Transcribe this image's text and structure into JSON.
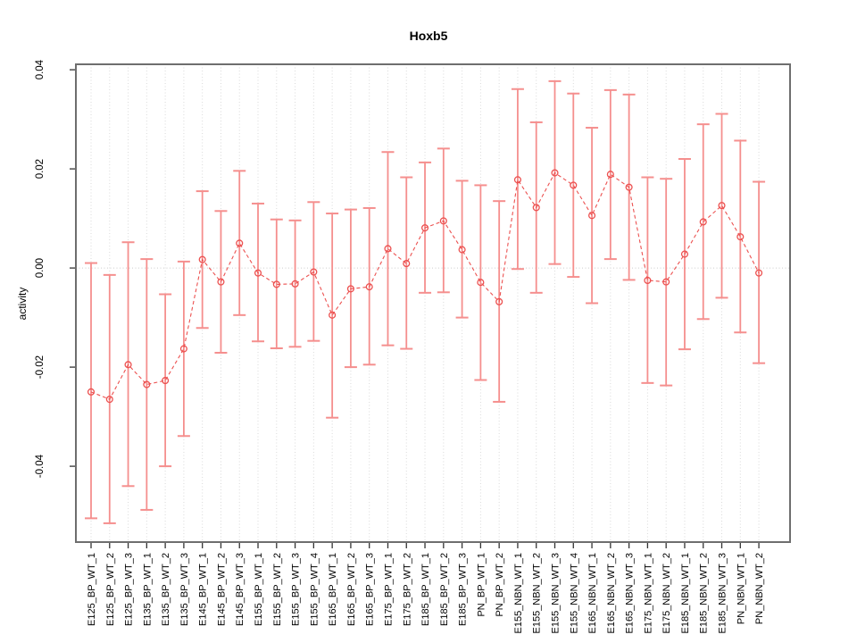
{
  "window": {
    "background": "#ffffff"
  },
  "chart_data": {
    "type": "scatter",
    "title": "Hoxb5",
    "xlabel": "",
    "ylabel": "activity",
    "legend": "none",
    "marker": "open-circle",
    "line_style": "dashed",
    "grid": {
      "vertical_dotted": true,
      "horizontal": false,
      "zero_line_dotted": true
    },
    "ylim": [
      -0.0553,
      0.0411
    ],
    "y_ticks": {
      "values": [
        0.04,
        0.02,
        0.0,
        -0.02,
        -0.04
      ],
      "labels": [
        "0.04",
        "0.02",
        "0.00",
        "-0.02",
        "-0.04"
      ]
    },
    "categories": [
      "E125_BP_WT_1",
      "E125_BP_WT_2",
      "E125_BP_WT_3",
      "E135_BP_WT_1",
      "E135_BP_WT_2",
      "E135_BP_WT_3",
      "E145_BP_WT_1",
      "E145_BP_WT_2",
      "E145_BP_WT_3",
      "E155_BP_WT_1",
      "E155_BP_WT_2",
      "E155_BP_WT_3",
      "E155_BP_WT_4",
      "E165_BP_WT_1",
      "E165_BP_WT_2",
      "E165_BP_WT_3",
      "E175_BP_WT_1",
      "E175_BP_WT_2",
      "E185_BP_WT_1",
      "E185_BP_WT_2",
      "E185_BP_WT_3",
      "PN_BP_WT_1",
      "PN_BP_WT_2",
      "E155_NBN_WT_1",
      "E155_NBN_WT_2",
      "E155_NBN_WT_3",
      "E155_NBN_WT_4",
      "E165_NBN_WT_1",
      "E165_NBN_WT_2",
      "E165_NBN_WT_3",
      "E175_NBN_WT_1",
      "E175_NBN_WT_2",
      "E185_NBN_WT_1",
      "E185_NBN_WT_2",
      "E185_NBN_WT_3",
      "PN_NBN_WT_1",
      "PN_NBN_WT_2"
    ],
    "series": [
      {
        "name": "activity",
        "values": [
          -0.025,
          -0.0265,
          -0.0195,
          -0.0235,
          -0.0227,
          -0.0163,
          0.0017,
          -0.0028,
          0.005,
          -0.001,
          -0.0033,
          -0.0032,
          -0.0008,
          -0.0095,
          -0.0042,
          -0.0038,
          0.0039,
          0.0009,
          0.0081,
          0.0095,
          0.0037,
          -0.0029,
          -0.0068,
          0.0178,
          0.0122,
          0.0192,
          0.0167,
          0.0106,
          0.0189,
          0.0163,
          -0.0025,
          -0.0028,
          0.0028,
          0.0093,
          0.0126,
          0.0063,
          -0.001
        ],
        "upper": [
          0.001,
          -0.0014,
          0.0052,
          0.0018,
          -0.0053,
          0.0013,
          0.0155,
          0.0115,
          0.0196,
          0.013,
          0.0098,
          0.0096,
          0.0133,
          0.011,
          0.0118,
          0.0121,
          0.0234,
          0.0183,
          0.0213,
          0.0241,
          0.0176,
          0.0167,
          0.0135,
          0.0361,
          0.0294,
          0.0377,
          0.0352,
          0.0283,
          0.0359,
          0.035,
          0.0183,
          0.018,
          0.022,
          0.029,
          0.0311,
          0.0257,
          0.0174
        ],
        "lower": [
          -0.0505,
          -0.0515,
          -0.044,
          -0.0488,
          -0.04,
          -0.0339,
          -0.0121,
          -0.0171,
          -0.0095,
          -0.0148,
          -0.0162,
          -0.0159,
          -0.0147,
          -0.0302,
          -0.02,
          -0.0195,
          -0.0156,
          -0.0163,
          -0.005,
          -0.0049,
          -0.01,
          -0.0226,
          -0.027,
          -0.0002,
          -0.005,
          0.0008,
          -0.0018,
          -0.0071,
          0.0018,
          -0.0024,
          -0.0232,
          -0.0237,
          -0.0164,
          -0.0103,
          -0.006,
          -0.013,
          -0.0192
        ]
      }
    ],
    "colors": {
      "error_bar": "#f58f8e",
      "point_line": "#ec5150",
      "grid": "#dadada",
      "zero_line": "#cccccc",
      "box": "#6e6e6e",
      "tick": "#333333",
      "text": "#000000"
    }
  }
}
